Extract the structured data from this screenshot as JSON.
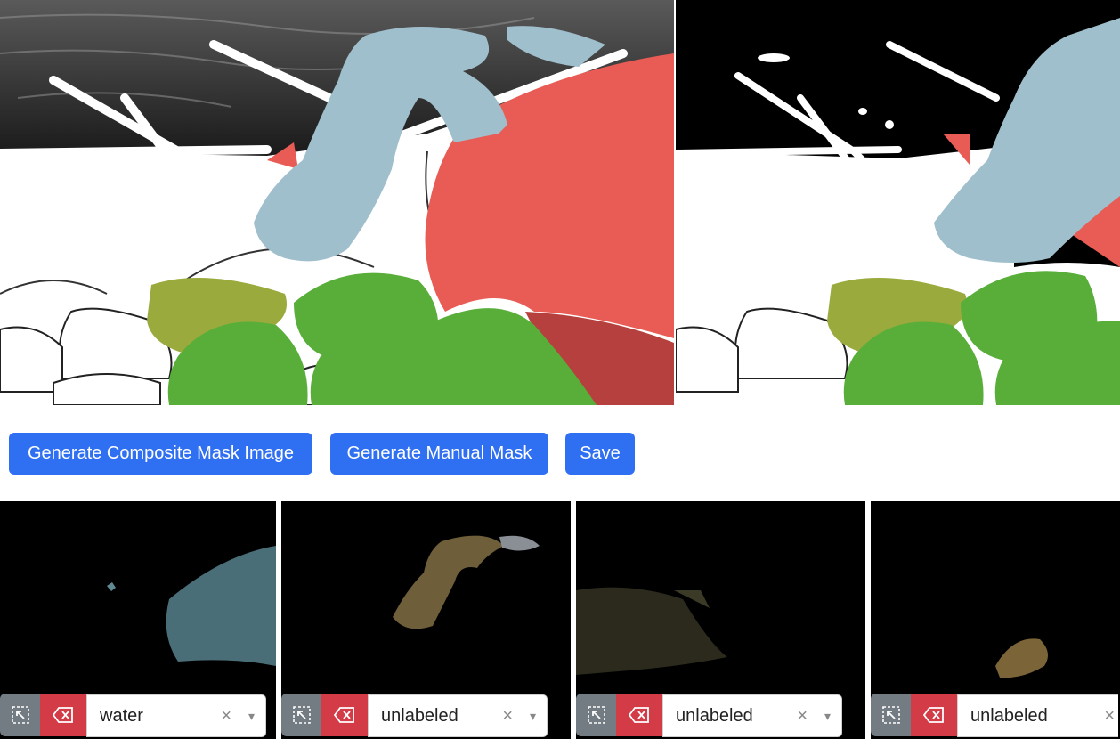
{
  "toolbar": {
    "composite_label": "Generate Composite Mask Image",
    "manual_label": "Generate Manual Mask",
    "save_label": "Save"
  },
  "segments": [
    {
      "label": "water",
      "clear": "×",
      "caret": "▾"
    },
    {
      "label": "unlabeled",
      "clear": "×",
      "caret": "▾"
    },
    {
      "label": "unlabeled",
      "clear": "×",
      "caret": "▾"
    },
    {
      "label": "unlabeled",
      "clear": "×",
      "caret": ""
    }
  ],
  "icons": {
    "select": "cursor-select-icon",
    "delete": "backspace-delete-icon"
  },
  "colors": {
    "primary": "#2f6ff2",
    "danger": "#d33b47",
    "secondary": "#737b83",
    "mask_blue": "#9fbfcc",
    "mask_red": "#e85c55",
    "mask_green": "#59ae3a",
    "mask_olive": "#9aaa3c"
  }
}
